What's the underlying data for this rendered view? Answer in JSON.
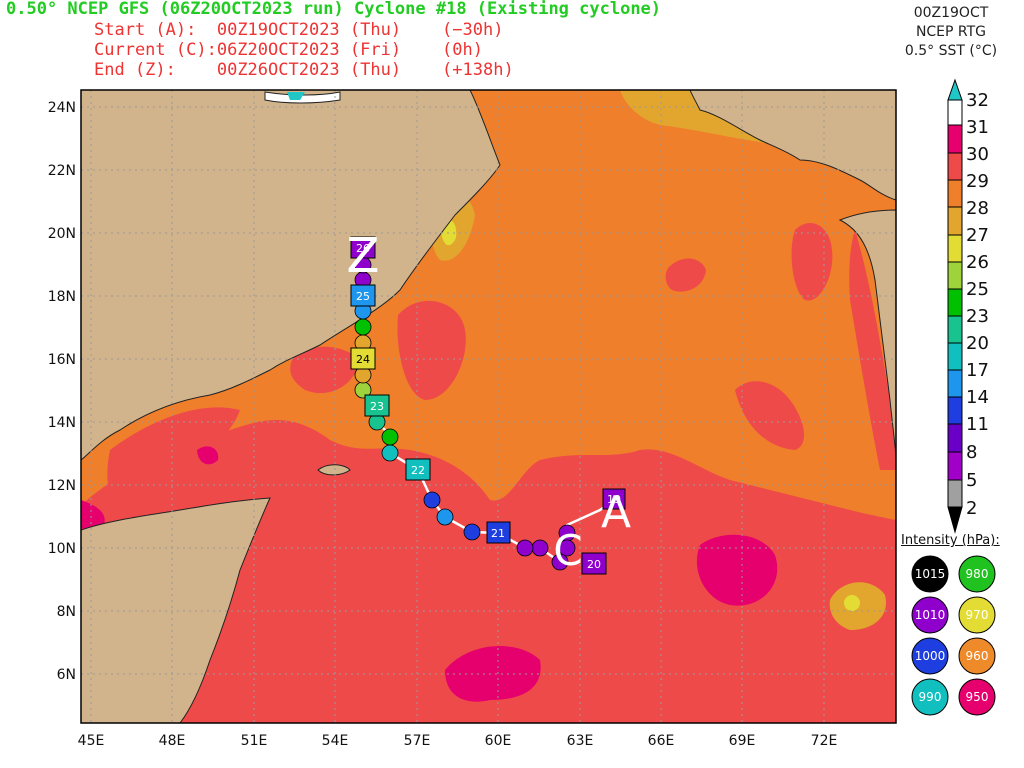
{
  "header": {
    "title": "0.50° NCEP GFS (06Z20OCT2023 run) Cyclone #18 (Existing cyclone)",
    "start_label": "Start (A):",
    "start_time": "00Z19OCT2023 (Thu)",
    "start_offset": "(−30h)",
    "current_label": "Current (C):",
    "current_time": "06Z20OCT2023 (Fri)",
    "current_offset": "(0h)",
    "end_label": "End (Z):",
    "end_time": "00Z26OCT2023 (Thu)",
    "end_offset": "(+138h)"
  },
  "top_right": {
    "line1": "00Z19OCT",
    "line2": "NCEP RTG",
    "line3": "0.5° SST (°C)"
  },
  "colorbar": {
    "ticks": [
      "32",
      "31",
      "30",
      "29",
      "28",
      "27",
      "26",
      "25",
      "23",
      "20",
      "17",
      "14",
      "11",
      "8",
      "5",
      "2"
    ],
    "colors": [
      "#21c6c6",
      "#ffffff",
      "#e6006e",
      "#ef4a4a",
      "#ef7f2a",
      "#e2a62e",
      "#e2dc35",
      "#9fd33b",
      "#00c000",
      "#19c38f",
      "#11bfbf",
      "#1f96ee",
      "#1e3ee0",
      "#6a00c8",
      "#a000c8",
      "#a0a0a0",
      "#000000"
    ]
  },
  "map": {
    "lat_labels": [
      "24N",
      "22N",
      "20N",
      "18N",
      "16N",
      "14N",
      "12N",
      "10N",
      "8N",
      "6N"
    ],
    "lon_labels": [
      "45E",
      "48E",
      "51E",
      "54E",
      "57E",
      "60E",
      "63E",
      "66E",
      "69E",
      "72E"
    ],
    "colors": {
      "land": "#d2b48c",
      "sea29": "#ef7f2a",
      "sea30": "#ef4a4a",
      "sea31": "#e6006e",
      "sea28": "#e2a62e",
      "sea27": "#e2dc35"
    },
    "markers": {
      "start": "A",
      "current": "C",
      "end": "Z"
    },
    "day_labels": [
      "19",
      "20",
      "21",
      "22",
      "23",
      "24",
      "25",
      "26"
    ]
  },
  "intensity_legend": {
    "title": "Intensity (hPa):",
    "items": [
      {
        "label": "1015",
        "color": "#000000"
      },
      {
        "label": "980",
        "color": "#1fc21f"
      },
      {
        "label": "1010",
        "color": "#8f00cc"
      },
      {
        "label": "970",
        "color": "#e2dc35"
      },
      {
        "label": "1000",
        "color": "#1e3ee0"
      },
      {
        "label": "960",
        "color": "#ef8a2a"
      },
      {
        "label": "990",
        "color": "#11bfbf"
      },
      {
        "label": "950",
        "color": "#e6006e"
      }
    ]
  }
}
